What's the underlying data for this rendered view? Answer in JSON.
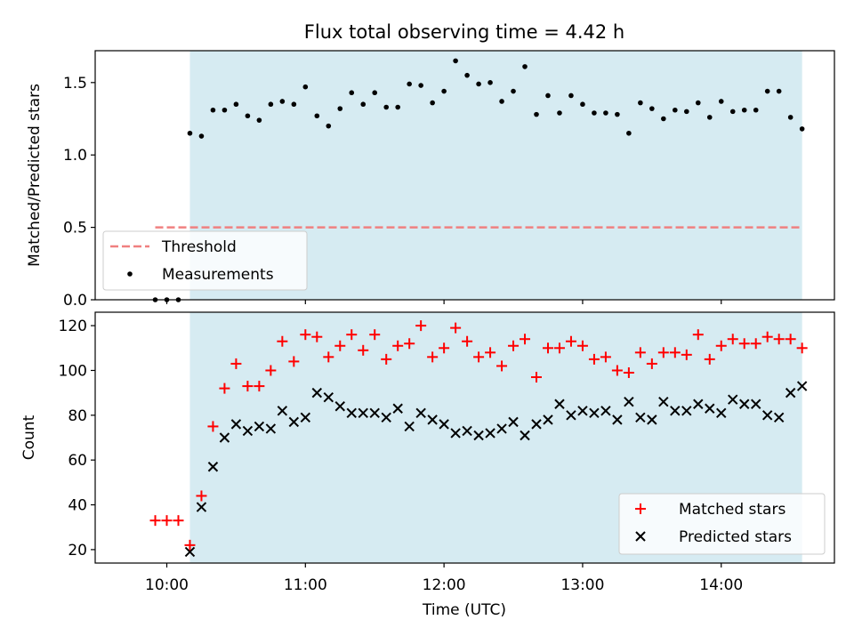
{
  "chart_data": [
    {
      "type": "scatter",
      "title": "Flux total observing time = 4.42 h",
      "xlabel": "",
      "ylabel": "Matched/Predicted stars",
      "ylim": [
        0,
        1.72
      ],
      "yticks": [
        0.0,
        0.5,
        1.0,
        1.5
      ],
      "yticklabels": [
        "0.0",
        "0.5",
        "1.0",
        "1.5"
      ],
      "grid": false,
      "legend": "lower-left",
      "shaded_span": {
        "x0": "10:10",
        "x1": "14:35",
        "color": "#add8e6"
      },
      "threshold": {
        "name": "Threshold",
        "value": 0.5,
        "x0": "09:55",
        "x1": "14:35",
        "color": "#f08080"
      },
      "series": [
        {
          "name": "Measurements",
          "color": "#000000",
          "x": [
            "09:55",
            "10:00",
            "10:05",
            "10:10",
            "10:15",
            "10:20",
            "10:25",
            "10:30",
            "10:35",
            "10:40",
            "10:45",
            "10:50",
            "10:55",
            "11:00",
            "11:05",
            "11:10",
            "11:15",
            "11:20",
            "11:25",
            "11:30",
            "11:35",
            "11:40",
            "11:45",
            "11:50",
            "11:55",
            "12:00",
            "12:05",
            "12:10",
            "12:15",
            "12:20",
            "12:25",
            "12:30",
            "12:35",
            "12:40",
            "12:45",
            "12:50",
            "12:55",
            "13:00",
            "13:05",
            "13:10",
            "13:15",
            "13:20",
            "13:25",
            "13:30",
            "13:35",
            "13:40",
            "13:45",
            "13:50",
            "13:55",
            "14:00",
            "14:05",
            "14:10",
            "14:15",
            "14:20",
            "14:25",
            "14:30",
            "14:35"
          ],
          "y": [
            0.0,
            0.0,
            0.0,
            1.15,
            1.13,
            1.31,
            1.31,
            1.35,
            1.27,
            1.24,
            1.35,
            1.37,
            1.35,
            1.47,
            1.27,
            1.2,
            1.32,
            1.43,
            1.35,
            1.43,
            1.33,
            1.33,
            1.49,
            1.48,
            1.36,
            1.44,
            1.65,
            1.55,
            1.49,
            1.5,
            1.37,
            1.44,
            1.61,
            1.28,
            1.41,
            1.29,
            1.41,
            1.35,
            1.29,
            1.29,
            1.28,
            1.15,
            1.36,
            1.32,
            1.25,
            1.31,
            1.3,
            1.36,
            1.26,
            1.37,
            1.3,
            1.31,
            1.31,
            1.44,
            1.44,
            1.26,
            1.18
          ]
        }
      ]
    },
    {
      "type": "scatter",
      "title": "",
      "xlabel": "Time (UTC)",
      "ylabel": "Count",
      "ylim": [
        14,
        126
      ],
      "yticks": [
        20,
        40,
        60,
        80,
        100,
        120
      ],
      "yticklabels": [
        "20",
        "40",
        "60",
        "80",
        "100",
        "120"
      ],
      "xticks": [
        "10:00",
        "11:00",
        "12:00",
        "13:00",
        "14:00"
      ],
      "grid": false,
      "legend": "lower-right",
      "series": [
        {
          "name": "Matched stars",
          "marker": "plus",
          "color": "#ff0000",
          "x": [
            "09:55",
            "10:00",
            "10:05",
            "10:10",
            "10:15",
            "10:20",
            "10:25",
            "10:30",
            "10:35",
            "10:40",
            "10:45",
            "10:50",
            "10:55",
            "11:00",
            "11:05",
            "11:10",
            "11:15",
            "11:20",
            "11:25",
            "11:30",
            "11:35",
            "11:40",
            "11:45",
            "11:50",
            "11:55",
            "12:00",
            "12:05",
            "12:10",
            "12:15",
            "12:20",
            "12:25",
            "12:30",
            "12:35",
            "12:40",
            "12:45",
            "12:50",
            "12:55",
            "13:00",
            "13:05",
            "13:10",
            "13:15",
            "13:20",
            "13:25",
            "13:30",
            "13:35",
            "13:40",
            "13:45",
            "13:50",
            "13:55",
            "14:00",
            "14:05",
            "14:10",
            "14:15",
            "14:20",
            "14:25",
            "14:30",
            "14:35"
          ],
          "y": [
            33,
            33,
            33,
            22,
            44,
            75,
            92,
            103,
            93,
            93,
            100,
            113,
            104,
            116,
            115,
            106,
            111,
            116,
            109,
            116,
            105,
            111,
            112,
            120,
            106,
            110,
            119,
            113,
            106,
            108,
            102,
            111,
            114,
            97,
            110,
            110,
            113,
            111,
            105,
            106,
            100,
            99,
            108,
            103,
            108,
            108,
            107,
            116,
            105,
            111,
            114,
            112,
            112,
            115,
            114,
            114,
            110
          ]
        },
        {
          "name": "Predicted stars",
          "marker": "x",
          "color": "#000000",
          "x": [
            "10:10",
            "10:15",
            "10:20",
            "10:25",
            "10:30",
            "10:35",
            "10:40",
            "10:45",
            "10:50",
            "10:55",
            "11:00",
            "11:05",
            "11:10",
            "11:15",
            "11:20",
            "11:25",
            "11:30",
            "11:35",
            "11:40",
            "11:45",
            "11:50",
            "11:55",
            "12:00",
            "12:05",
            "12:10",
            "12:15",
            "12:20",
            "12:25",
            "12:30",
            "12:35",
            "12:40",
            "12:45",
            "12:50",
            "12:55",
            "13:00",
            "13:05",
            "13:10",
            "13:15",
            "13:20",
            "13:25",
            "13:30",
            "13:35",
            "13:40",
            "13:45",
            "13:50",
            "13:55",
            "14:00",
            "14:05",
            "14:10",
            "14:15",
            "14:20",
            "14:25",
            "14:30",
            "14:35"
          ],
          "y": [
            19,
            39,
            57,
            70,
            76,
            73,
            75,
            74,
            82,
            77,
            79,
            90,
            88,
            84,
            81,
            81,
            81,
            79,
            83,
            75,
            81,
            78,
            76,
            72,
            73,
            71,
            72,
            74,
            77,
            71,
            76,
            78,
            85,
            80,
            82,
            81,
            82,
            78,
            86,
            79,
            78,
            86,
            82,
            82,
            85,
            83,
            81,
            87,
            85,
            85,
            80,
            79,
            90,
            93
          ]
        }
      ]
    }
  ]
}
